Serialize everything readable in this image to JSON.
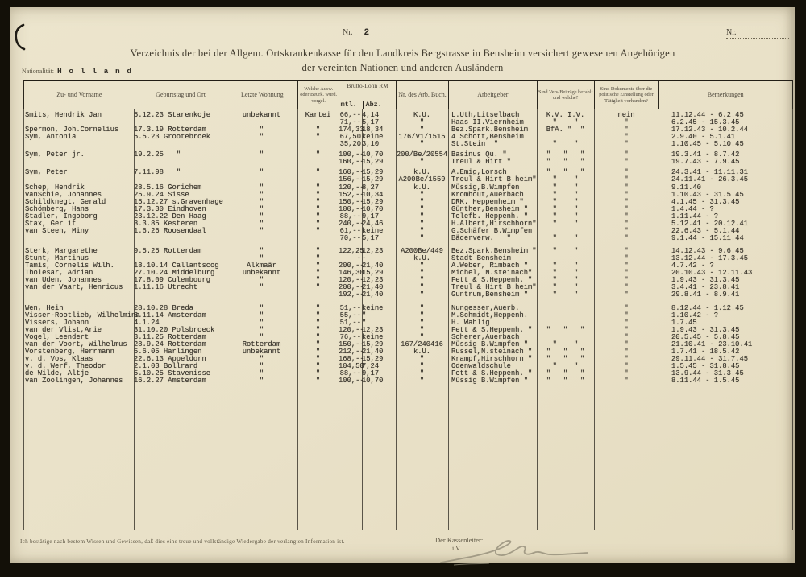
{
  "colors": {
    "paper": "#e9e1c8",
    "ink_typed": "#36322a",
    "ink_print": "#4c463a",
    "border": "#2a261d",
    "pencil": "#98917d"
  },
  "page": {
    "nr_label": "Nr.",
    "nr_value": "2",
    "nr_right_label": "Nr.",
    "title_line1": "Verzeichnis der bei der Allgem. Ortskrankenkasse für den Landkreis Bergstrasse in Bensheim versichert gewesenen Angehörigen",
    "title_line2": "der vereinten Nationen und anderen Ausländern",
    "nationality_label": "Nationalität:",
    "nationality_value": "H o l l a n d",
    "nationality_rule": "— ——",
    "footer_certify": "Ich bestätige nach bestem Wissen und Gewissen, daß dies eine treue und vollständige Wiedergabe der verlangten Information ist.",
    "footer_sign_label": "Der Kassenleiter:",
    "footer_sign_sub": "i.V."
  },
  "table": {
    "headers": {
      "name": "Zu- und Vorname",
      "birth": "Geburtstag und Ort",
      "residence": "Letzte Wohnung",
      "docs_shown": "Welche Ausw. oder Beurk. wurd. vorgel.",
      "wage_group": "Brutto-Lohn RM",
      "wage_sub_monthly": "mtl.",
      "wage_sub_deduction": "Abz.",
      "workbook": "Nr. des Arb. Buch.",
      "employer": "Arbeitgeber",
      "insurance": "Sind Vers-Beiträge bezahlt und welche?",
      "political": "Sind Dokumente über die politische Einstellung oder Tätigkeit vorhanden?",
      "remarks": "Bemerkungen"
    },
    "rows": [
      {
        "c": [
          "Smits, Hendrik Jan",
          "5.12.23 Starenkoje",
          "unbekannt",
          "Kartei",
          "66,--",
          "4,14",
          "K.U.",
          "L.Uth,Litselbach",
          "K.V. I.V.",
          "nein",
          "11.12.44 - 6.2.45"
        ]
      },
      {
        "c": [
          "",
          "",
          "",
          "",
          "71,--",
          "5,17",
          "\"",
          "Haas II.Viernheim",
          "\"    \"",
          "\"",
          "6.2.45 - 15.3.45"
        ]
      },
      {
        "c": [
          "Spermon, Joh.Cornelius",
          "17.3.19 Rotterdam",
          "\"",
          "\"",
          "174,33",
          "18,34",
          "\"",
          "Bez.Spark.Bensheim",
          "BfA. \"  \"",
          "\"",
          "17.12.43 - 10.2.44"
        ]
      },
      {
        "c": [
          "Sym, Antonia",
          "5.5.23 Grootebroek",
          "\"",
          "\"",
          "67,50",
          "keine",
          "176/V1/1515",
          "4 Schott,Bensheim",
          "",
          "\"",
          "2.9.40 - 5.1.41"
        ]
      },
      {
        "c": [
          "",
          "",
          "",
          "",
          "35,20",
          "3,10",
          "\"",
          "St.Stein  \"",
          "\"    \"",
          "\"",
          "1.10.45 - 5.10.45"
        ]
      },
      {
        "g": 4,
        "c": [
          "Sym, Peter jr.",
          "19.2.25   \"",
          "\"",
          "\"",
          "100,--",
          "10,70",
          "200/Be/20554",
          "Basinus Qu. \"",
          "\"   \"   \"",
          "\"",
          "19.3.41 - 8.7.42"
        ]
      },
      {
        "c": [
          "",
          "",
          "",
          "",
          "160,--",
          "15,29",
          "\"",
          "Treul & Hirt \"",
          "\"   \"   \"",
          "\"",
          "19.7.43 - 7.9.45"
        ]
      },
      {
        "g": 4,
        "c": [
          "Sym, Peter",
          "7.11.98   \"",
          "\"",
          "\"",
          "160,--",
          "15,29",
          "k.U.",
          "A.Emig,Lorsch",
          "\"   \"   \"",
          "\"",
          "24.3.41 - 11.11.31"
        ]
      },
      {
        "c": [
          "",
          "",
          "",
          "",
          "156,--",
          "15,29",
          "A200Be/1559",
          "Treul & Hirt B.heim\"",
          "\"    \"",
          "\"",
          "24.11.41 - 26.3.45"
        ]
      },
      {
        "g": 1,
        "c": [
          "Schep, Hendrik",
          "28.5.16 Gorichem",
          "\"",
          "\"",
          "120,--",
          "8,27",
          "k.U.",
          "Müssig,B.Wimpfen",
          "\"    \"",
          "\"",
          "9.11.40"
        ]
      },
      {
        "c": [
          "vanSchie, Johannes",
          "25.9.24 Sisse",
          "\"",
          "\"",
          "152,--",
          "10,34",
          "\"",
          "Kromhout,Auerbach",
          "\"    \"",
          "\"",
          "1.10.43 - 31.5.45"
        ]
      },
      {
        "c": [
          "Schildknegt, Gerald",
          "15.12.27 s.Gravenhage",
          "\"",
          "\"",
          "150,--",
          "15,29",
          "\"",
          "DRK. Heppenheim \"",
          "\"    \"",
          "\"",
          "4.1.45 - 31.3.45"
        ]
      },
      {
        "c": [
          "Schömberg, Hans",
          "17.3.30 Eindhoven",
          "\"",
          "\"",
          "100,--",
          "10,70",
          "\"",
          "Günther,Bensheim \"",
          "\"    \"",
          "\"",
          "1.4.44 - ?"
        ]
      },
      {
        "c": [
          "Stadler, Ingoborg",
          "23.12.22 Den Haag",
          "\"",
          "\"",
          "88,--",
          "9,17",
          "\"",
          "Telefb. Heppenh. \"",
          "\"    \"",
          "\"",
          "1.11.44 - ?"
        ]
      },
      {
        "c": [
          "Stax, Ger it",
          "8.3.85 Kesteren",
          "\"",
          "\"",
          "240,--",
          "24,46",
          "\"",
          "H.Albert,Hirschhorn\"",
          "\"    \"",
          "\"",
          "5.12.41 - 20.12.41"
        ]
      },
      {
        "c": [
          "van Steen, Miny",
          "1.6.26 Roosendaal",
          "\"",
          "\"",
          "61,--",
          "keine",
          "\"",
          "G.Schäfer B.Wimpfen",
          "",
          "\"",
          "22.6.43 - 5.1.44"
        ]
      },
      {
        "c": [
          "",
          "",
          "",
          "",
          "70,--",
          "5,17",
          "\"",
          "Bäderverw.   \"",
          "\"    \"",
          "\"",
          "9.1.44 - 15.11.44"
        ]
      },
      {
        "g": 7,
        "c": [
          "Sterk, Margarethe",
          "9.5.25 Rotterdam",
          "\"",
          "\"",
          "122,25",
          "12,23",
          "A200Be/449",
          "Bez.Spark.Bensheim \"",
          "\"    \"",
          "\"",
          "14.12.43 - 9.6.45"
        ]
      },
      {
        "c": [
          "Stunt, Martinus",
          "",
          "\"",
          "\"",
          "-",
          "-",
          "k.U.",
          "Stadt Bensheim",
          "",
          "\"",
          "13.12.44 - 17.3.45"
        ]
      },
      {
        "c": [
          "Tamis, Cornelis Wilh.",
          "18.10.14 Callantscog",
          "Alkmaär",
          "\"",
          "200,--",
          "21,40",
          "\"",
          "A.Weber, Rimbach \"",
          "\"    \"",
          "\"",
          "4.7.42 - ?"
        ]
      },
      {
        "c": [
          "Tholesar, Adrian",
          "27.10.24 Middelburg",
          "unbekannt",
          "\"",
          "146,30",
          "15,29",
          "\"",
          "Michel, N.steinach\"",
          "\"    \"",
          "\"",
          "20.10.43 - 12.11.43"
        ]
      },
      {
        "c": [
          "van Uden, Johannes",
          "17.8.09 Culembourg",
          "\"",
          "\"",
          "120,--",
          "12,23",
          "\"",
          "Fett & S.Heppenh. \"",
          "\"    \"",
          "\"",
          "1.9.43 - 31.3.45"
        ]
      },
      {
        "c": [
          "van der Vaart, Henricus",
          "1.11.16 Utrecht",
          "\"",
          "\"",
          "200,--",
          "21,40",
          "\"",
          "Treul & Hirt B.heim\"",
          "\"    \"",
          "\"",
          "3.4.41 - 23.8.41"
        ]
      },
      {
        "c": [
          "",
          "",
          "",
          "",
          "192,--",
          "21,40",
          "\"",
          "Guntrum,Bensheim \"",
          "\"    \"",
          "\"",
          "29.8.41 - 8.9.41"
        ]
      },
      {
        "g": 8,
        "c": [
          "Wen, Hein",
          "28.10.28 Breda",
          "\"",
          "\"",
          "51,--",
          "keine",
          "\"",
          "Nungesser,Auerb.",
          "",
          "\"",
          "8.12.44 - 1.12.45"
        ]
      },
      {
        "c": [
          "Visser-Rootlieb, Wilhelmina",
          "6.11.14 Amsterdam",
          "\"",
          "\"",
          "55,--",
          "\"",
          "\"",
          "M.Schmidt,Heppenh.",
          "",
          "\"",
          "1.10.42 - ?"
        ]
      },
      {
        "c": [
          "Vissers, Johann",
          "4.1.24",
          "\"",
          "\"",
          "51,--",
          "\"",
          "\"",
          "H. Wahlig",
          "",
          "\"",
          "1.7.45"
        ]
      },
      {
        "c": [
          "van der Vlist,Arie",
          "31.10.20 Polsbroeck",
          "\"",
          "\"",
          "120,--",
          "12,23",
          "\"",
          "Fett & S.Heppenh. \"",
          "\"   \"   \"",
          "\"",
          "1.9.43 - 31.3.45"
        ]
      },
      {
        "c": [
          "Vogel, Leendert",
          "3.11.25 Rotterdam",
          "\"",
          "\"",
          "76,--",
          "keine",
          "\"",
          "Scherer,Auerbach",
          "",
          "\"",
          "20.5.45 - 5.8.45"
        ]
      },
      {
        "c": [
          "van der Voort, Wilhelmus",
          "28.9.24 Rotterdam",
          "Rotterdam",
          "\"",
          "150,--",
          "15,29",
          "167/240416",
          "Müssig B.Wimpfen \"",
          "\"    \"",
          "\"",
          "21.10.41 - 23.10.41"
        ]
      },
      {
        "c": [
          "Vorstenberg, Herrmann",
          "5.6.05 Harlingen",
          "unbekannt",
          "\"",
          "212,--",
          "21,40",
          "k.U.",
          "Russel,N.steinach \"",
          "\"   \"   \"",
          "\"",
          "1.7.41 - 18.5.42"
        ]
      },
      {
        "c": [
          "v. d. Vos, Klaas",
          "22.6.13 Appeldorn",
          "\"",
          "\"",
          "168,--",
          "15,29",
          "\"",
          "Krampf,Hirschhorn \"",
          "\"   \"   \"",
          "\"",
          "29.11.44 - 31.7.45"
        ]
      },
      {
        "c": [
          "v. d. Werf, Theodor",
          "2.1.03 Bollrard",
          "\"",
          "\"",
          "104,50",
          "7,24",
          "\"",
          "Odenwaldschule",
          "\"    \"",
          "\"",
          "1.5.45 - 31.8.45"
        ]
      },
      {
        "c": [
          "de Wilde, Altje",
          "5.10.25 Stavenisse",
          "\"",
          "\"",
          "88,--",
          "9,17",
          "\"",
          "Fett & S.Heppenh. \"",
          "\"   \"   \"",
          "\"",
          "13.9.44 - 31.3.45"
        ]
      },
      {
        "c": [
          "van Zoolingen, Johannes",
          "16.2.27 Amsterdam",
          "\"",
          "\"",
          "100,--",
          "10,70",
          "\"",
          "Müssig B.Wimpfen \"",
          "\"   \"   \"",
          "\"",
          "8.11.44 - 1.5.45"
        ]
      }
    ]
  }
}
